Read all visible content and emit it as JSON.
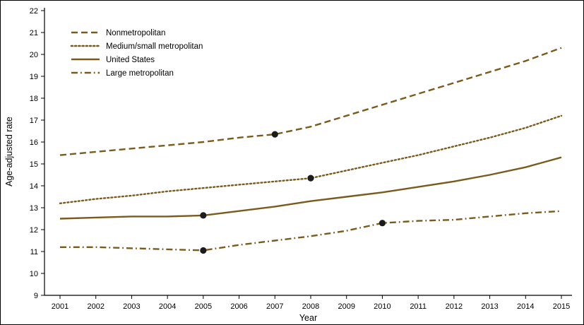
{
  "chart_data": {
    "type": "line",
    "title": "",
    "xlabel": "Year",
    "ylabel": "Age-adjusted rate",
    "x": [
      2001,
      2002,
      2003,
      2004,
      2005,
      2006,
      2007,
      2008,
      2009,
      2010,
      2011,
      2012,
      2013,
      2014,
      2015
    ],
    "ylim": [
      9,
      22
    ],
    "ytick_step": 1,
    "grid": false,
    "legend_position": "top-left-inside",
    "line_color": "#7a5b1e",
    "marker_color": "#1c1c1c",
    "series": [
      {
        "name": "Nonmetropolitan",
        "style": "dashed",
        "values": [
          15.4,
          15.55,
          15.7,
          15.85,
          16.0,
          16.2,
          16.35,
          16.7,
          17.2,
          17.7,
          18.2,
          18.7,
          19.2,
          19.7,
          20.3
        ]
      },
      {
        "name": "Medium/small metropolitan",
        "style": "dotted",
        "values": [
          13.2,
          13.4,
          13.55,
          13.75,
          13.9,
          14.05,
          14.2,
          14.35,
          14.7,
          15.05,
          15.4,
          15.8,
          16.2,
          16.65,
          17.2
        ]
      },
      {
        "name": "United States",
        "style": "solid",
        "values": [
          12.5,
          12.55,
          12.6,
          12.6,
          12.65,
          12.85,
          13.05,
          13.3,
          13.5,
          13.7,
          13.95,
          14.2,
          14.5,
          14.85,
          15.3
        ]
      },
      {
        "name": "Large metropolitan",
        "style": "dashdot",
        "values": [
          11.2,
          11.2,
          11.15,
          11.1,
          11.05,
          11.3,
          11.5,
          11.7,
          11.95,
          12.3,
          12.4,
          12.45,
          12.6,
          12.75,
          12.85
        ]
      }
    ],
    "markers": [
      {
        "series": "Nonmetropolitan",
        "x": 2007,
        "y": 16.35
      },
      {
        "series": "Medium/small metropolitan",
        "x": 2008,
        "y": 14.35
      },
      {
        "series": "United States",
        "x": 2005,
        "y": 12.65
      },
      {
        "series": "Large metropolitan",
        "x": 2005,
        "y": 11.05
      },
      {
        "series": "Large metropolitan",
        "x": 2010,
        "y": 12.3
      }
    ]
  }
}
